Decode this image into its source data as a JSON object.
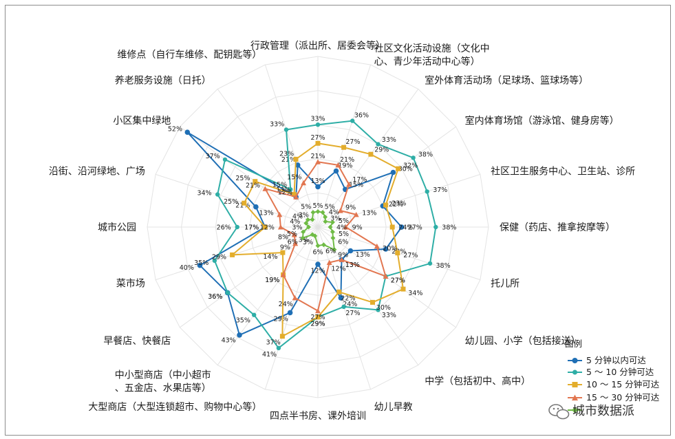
{
  "chart_data": {
    "type": "radar",
    "rmax": 55,
    "grid_rings": 5,
    "categories": [
      "行政管理（派出所、居委会等）",
      "社区文化活动设施（文化中心、青少年活动中心等）",
      "室外体育活动场（足球场、篮球场等）",
      "室内体育场馆（游泳馆、健身房等）",
      "社区卫生服务中心、卫生站、诊所",
      "保健（药店、推拿按摩等）",
      "托儿所",
      "幼儿园、小学（包括接送）",
      "中学（包括初中、高中）",
      "幼儿早教",
      "四点半书房、课外培训",
      "大型商店（大型连锁超市、购物中心等）",
      "中小型商店（中小超市、五金店、水果店等）",
      "早餐店、快餐店",
      "菜市场",
      "城市公园",
      "沿街、沿河绿地、广场",
      "小区集中绿地",
      "养老服务设施（日托）",
      "维修点（自行车维修、配钥匙等）"
    ],
    "series": [
      {
        "name": "5 分钟以内可达",
        "color": "#1f6fb5",
        "marker": "circle",
        "values": [
          13,
          19,
          15,
          30,
          22,
          27,
          23,
          13,
          13,
          24,
          12,
          29,
          43,
          36,
          40,
          17,
          21,
          52,
          12,
          21
        ],
        "labels": [
          "13%",
          "19%",
          "15%",
          "30%",
          "22%",
          "27%",
          "23%",
          "13%",
          "13%",
          "24%",
          "12%",
          "29%",
          "43%",
          "36%",
          "40%",
          "17%",
          "21%",
          "52%",
          "12%",
          "21%"
        ]
      },
      {
        "name": "5 ～ 10 分钟可达",
        "color": "#2eaea6",
        "marker": "circle",
        "values": [
          33,
          36,
          33,
          38,
          37,
          38,
          38,
          27,
          33,
          27,
          29,
          41,
          35,
          36,
          35,
          26,
          34,
          37,
          15,
          33
        ],
        "labels": [
          "33%",
          "36%",
          "33%",
          "38%",
          "37%",
          "38%",
          "38%",
          "27%",
          "33%",
          "27%",
          "29%",
          "41%",
          "35%",
          "36%",
          "35%",
          "26%",
          "34%",
          "37%",
          "15%",
          "33%"
        ]
      },
      {
        "name": "10 ～ 15 分钟可达",
        "color": "#e3ad2c",
        "marker": "square",
        "values": [
          27,
          27,
          29,
          32,
          23,
          24,
          27,
          34,
          30,
          22,
          29,
          37,
          19,
          14,
          29,
          17,
          25,
          25,
          13,
          23
        ],
        "labels": [
          "27%",
          "27%",
          "29%",
          "32%",
          "23%",
          "24%",
          "27%",
          "34%",
          "30%",
          "22%",
          "29%",
          "37%",
          "19%",
          "14%",
          "29%",
          "17%",
          "25%",
          "25%",
          "13%",
          "23%"
        ]
      },
      {
        "name": "15 ～ 30 分钟可达",
        "color": "#e27650",
        "marker": "triangle",
        "values": [
          21,
          21,
          17,
          9,
          13,
          9,
          20,
          27,
          13,
          12,
          27,
          24,
          19,
          9,
          8,
          12,
          13,
          21,
          12,
          15
        ],
        "labels": [
          "21%",
          "21%",
          "17%",
          "9%",
          "13%",
          "9%",
          "20%",
          "27%",
          "13%",
          "12%",
          "27%",
          "24%",
          "19%",
          "9%",
          "8%",
          "12%",
          "13%",
          "21%",
          "12%",
          "15%"
        ]
      },
      {
        "name": "30 分钟以上可达",
        "color": "#6fbb45",
        "marker": "diamond",
        "values": [
          5,
          5,
          4,
          3,
          5,
          4,
          5,
          6,
          9,
          6,
          6,
          3,
          3,
          6,
          5,
          3,
          4,
          4,
          3,
          5
        ],
        "labels": [
          "5%",
          "5%",
          "4%",
          "3%",
          "5%",
          "4%",
          "5%",
          "6%",
          "9%",
          "6%",
          "6%",
          "3%",
          "3%",
          "6%",
          "5%",
          "3%",
          "4%",
          "4%",
          "3%",
          "5%"
        ]
      }
    ],
    "legend": {
      "title": "图例",
      "position": "bottom-right"
    }
  },
  "watermark": "城市数据派"
}
